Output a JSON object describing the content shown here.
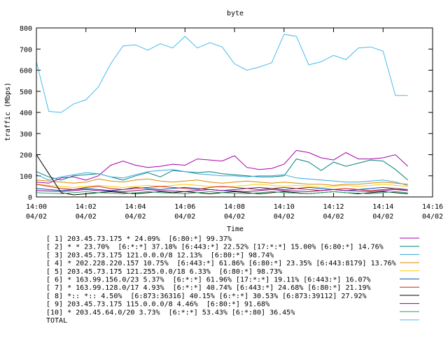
{
  "chart_data": {
    "type": "line",
    "title": "byte",
    "xlabel": "Time",
    "ylabel": "traffic (Mbps)",
    "ylim": [
      0,
      800
    ],
    "yticks": [
      "0",
      "100",
      "200",
      "300",
      "400",
      "500",
      "600",
      "700",
      "800"
    ],
    "xlim": [
      "14:00 04/02",
      "14:16 04/02"
    ],
    "xticks": [
      {
        "time": "14:00",
        "date": "04/02"
      },
      {
        "time": "14:02",
        "date": "04/02"
      },
      {
        "time": "14:04",
        "date": "04/02"
      },
      {
        "time": "14:06",
        "date": "04/02"
      },
      {
        "time": "14:08",
        "date": "04/02"
      },
      {
        "time": "14:10",
        "date": "04/02"
      },
      {
        "time": "14:12",
        "date": "04/02"
      },
      {
        "time": "14:14",
        "date": "04/02"
      },
      {
        "time": "14:16",
        "date": "04/02"
      }
    ],
    "x": [
      "14:00:00",
      "14:00:30",
      "14:01:00",
      "14:01:30",
      "14:02:00",
      "14:02:30",
      "14:03:00",
      "14:03:30",
      "14:04:00",
      "14:04:30",
      "14:05:00",
      "14:05:30",
      "14:06:00",
      "14:06:30",
      "14:07:00",
      "14:07:30",
      "14:08:00",
      "14:08:30",
      "14:09:00",
      "14:09:30",
      "14:10:00",
      "14:10:30",
      "14:11:00",
      "14:11:30",
      "14:12:00",
      "14:12:30",
      "14:13:00",
      "14:13:30",
      "14:14:00",
      "14:14:30",
      "14:15:00"
    ],
    "legend_position": "bottom",
    "grid": false,
    "series": [
      {
        "name": "[ 1] 203.45.73.175 * 24.09%  [6:80:*] 99.37%",
        "color": "#aa00aa",
        "values": [
          70,
          65,
          90,
          95,
          80,
          100,
          150,
          170,
          150,
          140,
          145,
          155,
          150,
          180,
          175,
          170,
          195,
          140,
          130,
          135,
          155,
          220,
          210,
          185,
          175,
          210,
          180,
          180,
          185,
          200,
          145
        ]
      },
      {
        "name": "[ 2] * * 23.70%  [6:*:*] 37.18% [6:443:*] 22.52% [17:*:*] 15.00% [6:80:*] 14.76%",
        "color": "#008080",
        "values": [
          120,
          95,
          80,
          100,
          105,
          110,
          95,
          80,
          100,
          115,
          95,
          125,
          120,
          115,
          120,
          110,
          105,
          100,
          95,
          95,
          100,
          180,
          165,
          125,
          165,
          145,
          160,
          175,
          170,
          130,
          80
        ]
      },
      {
        "name": "[ 3] 203.45.73.175 121.0.0.0/8 12.13%  [6:80:*] 98.74%",
        "color": "#33aadd",
        "values": [
          105,
          80,
          95,
          105,
          115,
          110,
          95,
          90,
          105,
          120,
          125,
          130,
          120,
          110,
          105,
          100,
          100,
          95,
          100,
          100,
          105,
          90,
          85,
          80,
          75,
          70,
          70,
          75,
          80,
          70,
          55
        ]
      },
      {
        "name": "[ 4] * 202.228.220.157 10.75%  [6:443:*] 61.86% [6:80:*] 23.35% [6:443:8179] 13.76%",
        "color": "#dd8800",
        "values": [
          80,
          75,
          70,
          65,
          70,
          85,
          75,
          70,
          80,
          85,
          75,
          70,
          75,
          80,
          70,
          65,
          70,
          75,
          70,
          65,
          70,
          65,
          60,
          60,
          55,
          60,
          60,
          65,
          70,
          65,
          60
        ]
      },
      {
        "name": "[ 5] 203.45.73.175 121.255.0.0/18 6.33%  [6:80:*] 98.73%",
        "color": "#ffcc00",
        "values": [
          60,
          55,
          50,
          45,
          50,
          55,
          50,
          45,
          50,
          55,
          50,
          55,
          60,
          55,
          50,
          45,
          50,
          55,
          60,
          55,
          50,
          55,
          50,
          45,
          50,
          55,
          50,
          55,
          60,
          55,
          50
        ]
      },
      {
        "name": "[ 6] * 163.99.156.0/23 5.37%  [6:*:*] 61.96% [17:*:*] 19.11% [6:443:*] 16.07%",
        "color": "#0055aa",
        "values": [
          40,
          35,
          30,
          35,
          40,
          35,
          30,
          35,
          45,
          40,
          35,
          40,
          45,
          40,
          35,
          30,
          35,
          40,
          45,
          40,
          35,
          40,
          45,
          40,
          35,
          30,
          35,
          40,
          45,
          40,
          35
        ]
      },
      {
        "name": "[ 7] * 163.99.128.0/17 4.93%  [6:*:*] 40.74% [6:443:*] 24.68% [6:80:*] 21.19%",
        "color": "#cc2222",
        "values": [
          60,
          50,
          40,
          35,
          45,
          50,
          40,
          35,
          40,
          45,
          50,
          45,
          40,
          35,
          45,
          50,
          45,
          40,
          35,
          40,
          45,
          40,
          35,
          30,
          35,
          40,
          35,
          30,
          35,
          40,
          30
        ]
      },
      {
        "name": "[ 8] *:: *:: 4.50%  [6:873:36316] 40.15% [6:*:*] 30.53% [6:873:39112] 27.92%",
        "color": "#000000",
        "values": [
          200,
          110,
          20,
          10,
          15,
          20,
          25,
          20,
          15,
          20,
          25,
          20,
          25,
          20,
          15,
          20,
          25,
          20,
          15,
          20,
          25,
          20,
          15,
          20,
          25,
          20,
          15,
          20,
          25,
          20,
          15
        ]
      },
      {
        "name": "[ 9] 203.45.73.175 115.0.0.0/8 4.46%  [6:80:*] 91.68%",
        "color": "#880088",
        "values": [
          30,
          28,
          25,
          30,
          35,
          30,
          28,
          25,
          30,
          35,
          30,
          28,
          25,
          30,
          35,
          30,
          28,
          25,
          30,
          35,
          30,
          28,
          25,
          30,
          35,
          30,
          28,
          25,
          30,
          35,
          30
        ]
      },
      {
        "name": "[10] * 203.45.64.0/20 3.73%  [6:*:*] 53.43% [6:*:80] 36.45%",
        "color": "#22aa66",
        "values": [
          20,
          18,
          15,
          20,
          25,
          20,
          18,
          15,
          20,
          25,
          20,
          18,
          15,
          20,
          25,
          20,
          18,
          15,
          20,
          25,
          20,
          18,
          15,
          20,
          25,
          20,
          18,
          15,
          20,
          25,
          20
        ]
      },
      {
        "name": "TOTAL",
        "color": "#44bbee",
        "values": [
          640,
          405,
          400,
          440,
          460,
          520,
          630,
          715,
          720,
          695,
          725,
          705,
          760,
          705,
          730,
          710,
          630,
          600,
          615,
          635,
          770,
          760,
          625,
          640,
          670,
          650,
          705,
          710,
          690,
          480,
          480
        ]
      }
    ]
  }
}
